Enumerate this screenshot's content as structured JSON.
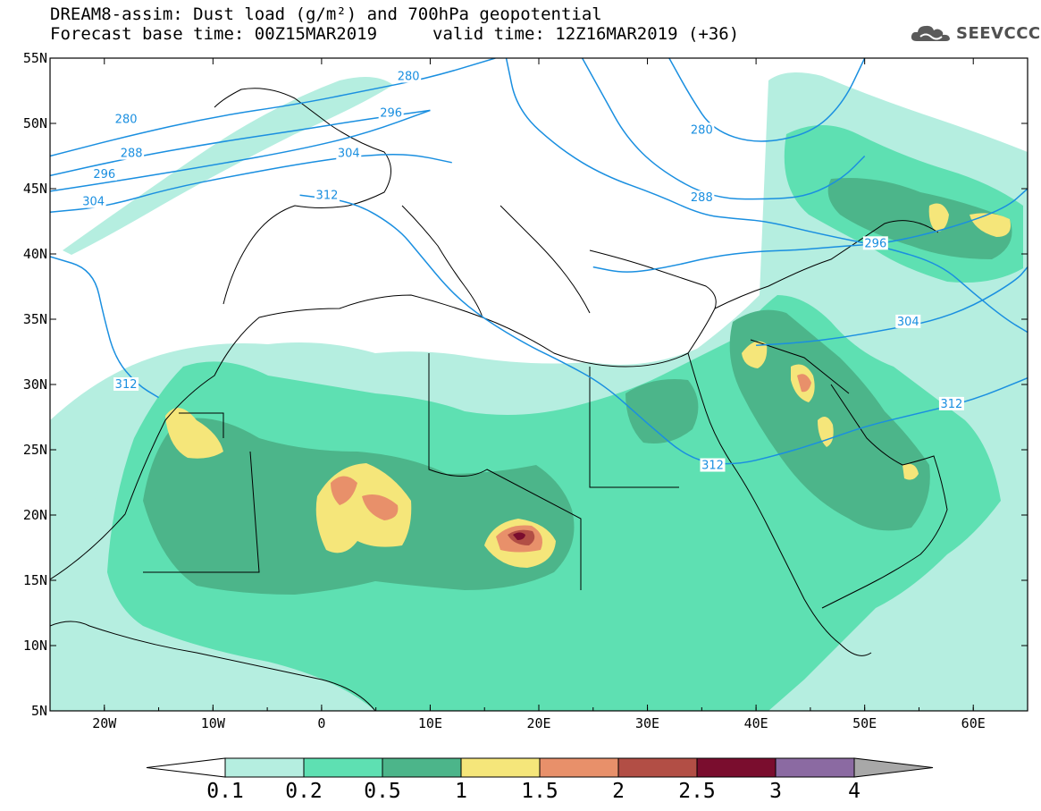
{
  "header": {
    "title_line1": "DREAM8-assim: Dust load (g/m²) and 700hPa geopotential",
    "base_time": "Forecast base time: 00Z15MAR2019",
    "valid_time": "valid time: 12Z16MAR2019 (+36)"
  },
  "logo": {
    "text": "SEEVCCC",
    "icon": "cloud-icon"
  },
  "map": {
    "lon_range": [
      -25,
      65
    ],
    "lat_range": [
      5,
      55
    ],
    "lon_ticks": [
      {
        "value": -20,
        "label": "20W"
      },
      {
        "value": -10,
        "label": "10W"
      },
      {
        "value": 0,
        "label": "0"
      },
      {
        "value": 10,
        "label": "10E"
      },
      {
        "value": 20,
        "label": "20E"
      },
      {
        "value": 30,
        "label": "30E"
      },
      {
        "value": 40,
        "label": "40E"
      },
      {
        "value": 50,
        "label": "50E"
      },
      {
        "value": 60,
        "label": "60E"
      }
    ],
    "lat_ticks": [
      {
        "value": 55,
        "label": "55N"
      },
      {
        "value": 50,
        "label": "50N"
      },
      {
        "value": 45,
        "label": "45N"
      },
      {
        "value": 40,
        "label": "40N"
      },
      {
        "value": 35,
        "label": "35N"
      },
      {
        "value": 30,
        "label": "30N"
      },
      {
        "value": 25,
        "label": "25N"
      },
      {
        "value": 20,
        "label": "20N"
      },
      {
        "value": 15,
        "label": "15N"
      },
      {
        "value": 10,
        "label": "10N"
      },
      {
        "value": 5,
        "label": "5N"
      }
    ],
    "contour_color": "#1a8fe0",
    "contours": [
      {
        "value": "280",
        "points": [
          [
            -25,
            47.5
          ],
          [
            -18,
            49
          ],
          [
            -10,
            50.5
          ],
          [
            -2,
            51.5
          ],
          [
            4,
            52.5
          ],
          [
            10,
            53.5
          ],
          [
            16,
            55
          ]
        ],
        "labels": [
          [
            -18,
            50.3,
            "280"
          ],
          [
            8,
            53.6,
            "280"
          ]
        ]
      },
      {
        "value": "288",
        "points": [
          [
            -25,
            46
          ],
          [
            -18,
            47.3
          ],
          [
            -10,
            48.5
          ],
          [
            -2,
            49.5
          ],
          [
            4,
            50.3
          ],
          [
            10,
            51
          ]
        ],
        "labels": [
          [
            -17.5,
            47.7,
            "288"
          ]
        ]
      },
      {
        "value": "296",
        "points": [
          [
            -25,
            44.8
          ],
          [
            -18,
            45.7
          ],
          [
            -10,
            46.8
          ],
          [
            -2,
            48
          ],
          [
            4,
            49.2
          ],
          [
            10,
            51
          ]
        ],
        "labels": [
          [
            -20,
            46.1,
            "296"
          ],
          [
            6.4,
            50.8,
            "296"
          ]
        ]
      },
      {
        "value": "304",
        "points": [
          [
            -25,
            43.2
          ],
          [
            -20,
            43.6
          ],
          [
            -14,
            45
          ],
          [
            -8,
            46
          ],
          [
            -2,
            46.9
          ],
          [
            3,
            47.5
          ],
          [
            8,
            47.7
          ],
          [
            12,
            47
          ]
        ],
        "labels": [
          [
            -21,
            44,
            "304"
          ],
          [
            2.5,
            47.7,
            "304"
          ]
        ]
      },
      {
        "value": "312",
        "points": [
          [
            -25,
            39.8
          ],
          [
            -21,
            38.8
          ],
          [
            -20,
            35
          ],
          [
            -19,
            32
          ],
          [
            -17,
            30
          ],
          [
            -15,
            29
          ]
        ],
        "labels": [
          [
            -18,
            30,
            "312"
          ]
        ]
      },
      {
        "value": "312b",
        "points": [
          [
            -2,
            44.5
          ],
          [
            3,
            44
          ],
          [
            7,
            42
          ],
          [
            9,
            40
          ],
          [
            12,
            37
          ],
          [
            15,
            35
          ],
          [
            19,
            33
          ],
          [
            22,
            31.8
          ],
          [
            26,
            30
          ],
          [
            30,
            27
          ],
          [
            34,
            24.2
          ],
          [
            38,
            23.8
          ],
          [
            42,
            24.6
          ],
          [
            46,
            25.6
          ],
          [
            50,
            26.8
          ],
          [
            55,
            27.8
          ],
          [
            60,
            28.8
          ],
          [
            65,
            30.5
          ]
        ],
        "labels": [
          [
            0.5,
            44.5,
            "312"
          ],
          [
            36,
            23.8,
            "312"
          ],
          [
            58,
            28.5,
            "312"
          ]
        ]
      },
      {
        "value": "304b",
        "points": [
          [
            17,
            55
          ],
          [
            18,
            51
          ],
          [
            22,
            48
          ],
          [
            26,
            46
          ],
          [
            31,
            44.5
          ],
          [
            35,
            43
          ],
          [
            38,
            42.7
          ],
          [
            41,
            42.5
          ],
          [
            46,
            41.5
          ],
          [
            52,
            40.5
          ],
          [
            57,
            39.2
          ],
          [
            60,
            37
          ],
          [
            63,
            35
          ],
          [
            65,
            34
          ]
        ],
        "labels": []
      },
      {
        "value": "288b",
        "points": [
          [
            24,
            55
          ],
          [
            26,
            52
          ],
          [
            28,
            49
          ],
          [
            31,
            46.5
          ],
          [
            36,
            44.2
          ],
          [
            42,
            44.2
          ],
          [
            45,
            44.5
          ],
          [
            48,
            45.8
          ],
          [
            50,
            47.5
          ]
        ],
        "labels": [
          [
            35,
            44.3,
            "288"
          ]
        ]
      },
      {
        "value": "280b",
        "points": [
          [
            32,
            55
          ],
          [
            34,
            52
          ],
          [
            36,
            49.5
          ],
          [
            40,
            48.4
          ],
          [
            45,
            49.2
          ],
          [
            48,
            51.5
          ],
          [
            50,
            55
          ]
        ],
        "labels": [
          [
            35,
            49.5,
            "280"
          ]
        ]
      },
      {
        "value": "296b",
        "points": [
          [
            25,
            39
          ],
          [
            28,
            38.5
          ],
          [
            32,
            39
          ],
          [
            36,
            39.8
          ],
          [
            40,
            40.2
          ],
          [
            44,
            40.3
          ],
          [
            48,
            40.6
          ],
          [
            52,
            40.8
          ],
          [
            58,
            42
          ],
          [
            63,
            43.5
          ],
          [
            65,
            45
          ]
        ],
        "labels": [
          [
            51,
            40.8,
            "296"
          ]
        ]
      },
      {
        "value": "304c",
        "points": [
          [
            40,
            33
          ],
          [
            44,
            33.2
          ],
          [
            48,
            33.6
          ],
          [
            52,
            34.2
          ],
          [
            56,
            34.8
          ],
          [
            60,
            36
          ],
          [
            64,
            38
          ],
          [
            65,
            39
          ]
        ],
        "labels": [
          [
            54,
            34.8,
            "304"
          ]
        ]
      }
    ]
  },
  "colorbar": {
    "labels": [
      "0.1",
      "0.2",
      "0.5",
      "1",
      "1.5",
      "2",
      "2.5",
      "3",
      "4"
    ],
    "colors": [
      "#b5eee0",
      "#5ee0b2",
      "#4cb58a",
      "#f5e67a",
      "#e8906a",
      "#b24e45",
      "#7a0d2e",
      "#8b6aa2"
    ],
    "under_color": "#ffffff",
    "over_color": "#a8a8a8"
  }
}
